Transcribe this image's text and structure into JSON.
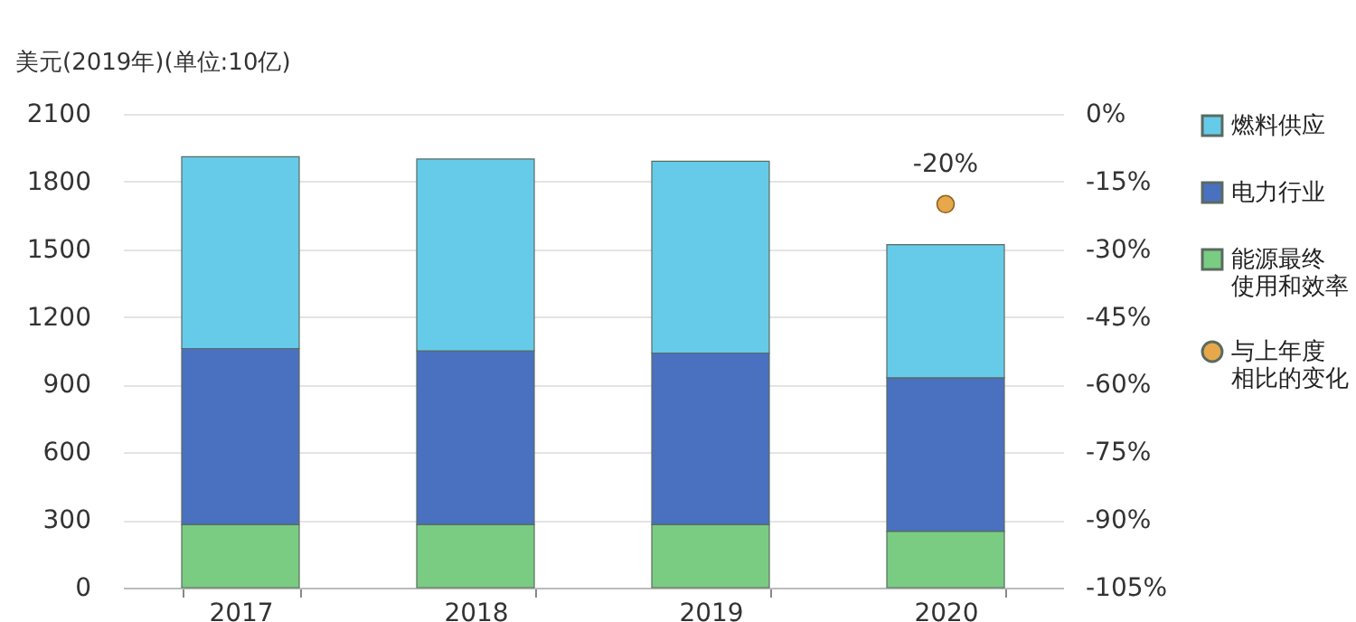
{
  "chart_data": {
    "type": "bar",
    "stacked": true,
    "ylabel": "美元(2019年)(单位:10亿)",
    "categories": [
      "2017",
      "2018",
      "2019",
      "2020"
    ],
    "series": [
      {
        "name": "能源最终使用和效率",
        "color": "#7acc82",
        "values": [
          280,
          280,
          280,
          250
        ]
      },
      {
        "name": "电力行业",
        "color": "#4a70c0",
        "values": [
          780,
          770,
          760,
          680
        ]
      },
      {
        "name": "燃料供应",
        "color": "#66cbe8",
        "values": [
          850,
          850,
          850,
          590
        ]
      },
      {
        "name": "与上年度相比的变化",
        "type": "scatter",
        "axis": "y2",
        "color": "#e6a84a",
        "values": [
          null,
          null,
          null,
          -20
        ],
        "value_labels": [
          null,
          null,
          null,
          "-20%"
        ]
      }
    ],
    "ylim": [
      0,
      2100
    ],
    "yticks": [
      0,
      300,
      600,
      900,
      1200,
      1500,
      1800,
      2100
    ],
    "y2lim": [
      -105,
      0
    ],
    "y2ticks": [
      {
        "value": 0,
        "label": "0%"
      },
      {
        "value": -15,
        "label": "-15%"
      },
      {
        "value": -30,
        "label": "-30%"
      },
      {
        "value": -45,
        "label": "-45%"
      },
      {
        "value": -60,
        "label": "-60%"
      },
      {
        "value": -75,
        "label": "-75%"
      },
      {
        "value": -90,
        "label": "-90%"
      },
      {
        "value": -105,
        "label": "-105%"
      }
    ],
    "grid": "y",
    "legend": "right",
    "marker": "circle"
  }
}
